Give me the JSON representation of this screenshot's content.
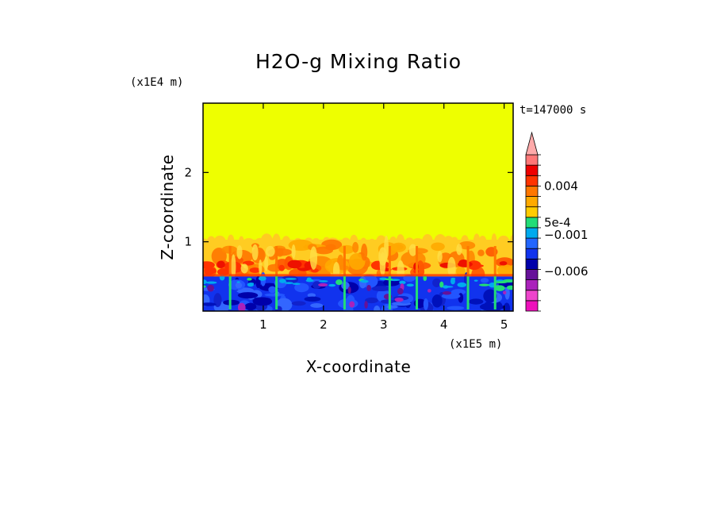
{
  "chart_data": {
    "type": "heatmap",
    "title": "H2O-g Mixing Ratio",
    "xlabel": "X-coordinate",
    "ylabel": "Z-coordinate",
    "x_scale_label": "(x1E5 m)",
    "y_scale_label": "(x1E4 m)",
    "time_label": "t=147000 s",
    "xlim": [
      0,
      5.15
    ],
    "ylim": [
      0,
      3
    ],
    "x_ticks": [
      {
        "value": 1,
        "label": "1"
      },
      {
        "value": 2,
        "label": "2"
      },
      {
        "value": 3,
        "label": "3"
      },
      {
        "value": 4,
        "label": "4"
      },
      {
        "value": 5,
        "label": "5"
      }
    ],
    "y_ticks": [
      {
        "value": 1,
        "label": "1"
      },
      {
        "value": 2,
        "label": "2"
      }
    ],
    "field": {
      "background_level_color": "#eeff00",
      "upper_turbulent_layer_top": 1.03,
      "mid_layer_top": 0.5,
      "spike_x": [
        0.45,
        1.22,
        2.35,
        3.1,
        3.55,
        4.4,
        4.85
      ]
    },
    "colorbar": {
      "colors": [
        "#ee11bb",
        "#ee44cc",
        "#aa22bb",
        "#661199",
        "#0000aa",
        "#1133ee",
        "#2266ff",
        "#00aaee",
        "#22dd77",
        "#ffcc00",
        "#ffaa00",
        "#ff7700",
        "#ff3300",
        "#ee0000",
        "#ff7777"
      ],
      "arrow_color": "#ffaaaa",
      "labels": [
        {
          "text": "0.004"
        },
        {
          "text": "5e-4"
        },
        {
          "text": "−0.001"
        },
        {
          "text": "−0.006"
        }
      ]
    }
  }
}
